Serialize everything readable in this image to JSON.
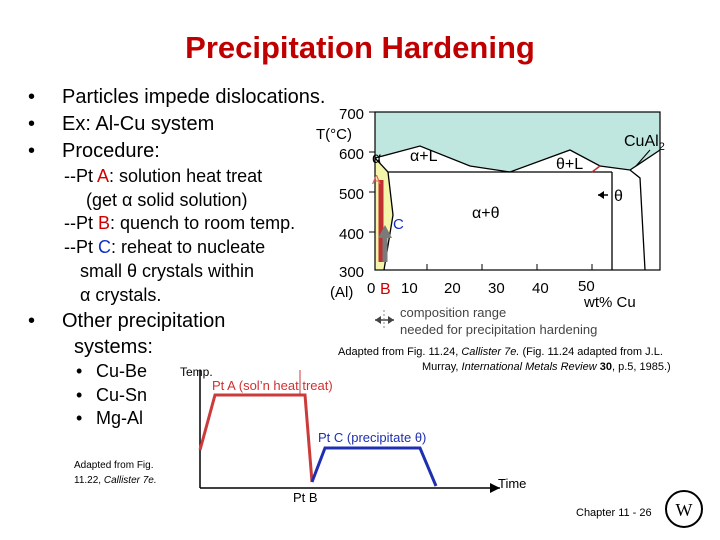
{
  "title": "Precipitation Hardening",
  "bullets": {
    "b1": "Particles impede dislocations.",
    "b2": "Ex: Al-Cu system",
    "b3": "Procedure:",
    "p1_prefix": "--Pt ",
    "p1_pt": "A",
    "p1_rest": ": solution heat treat",
    "p1_line2": "(get α solid solution)",
    "p2_prefix": "--Pt ",
    "p2_pt": "B",
    "p2_rest": ": quench to room temp.",
    "p3_prefix": "--Pt ",
    "p3_pt": "C",
    "p3_rest": ": reheat to nucleate",
    "p3_line2": "small θ crystals within",
    "p3_line3": "α crystals.",
    "b4_line1": "Other precipitation",
    "b4_line2": "systems:",
    "sys1": "Cu-Be",
    "sys2": "Cu-Sn",
    "sys3": "Mg-Al"
  },
  "phase_diagram": {
    "y_ticks": [
      "700",
      "600",
      "500",
      "400",
      "300"
    ],
    "y_title": "T(°C)",
    "x_origin": "(Al)",
    "x_ticks": [
      "0",
      "10",
      "20",
      "30",
      "40",
      "50"
    ],
    "x_title": "wt% Cu",
    "region_alpha": "α",
    "region_alpha_L": "α+L",
    "region_theta_L": "θ+L",
    "region_alpha_theta": "α+θ",
    "region_theta": "θ",
    "compound": "CuAl",
    "compound_sub": "2",
    "point_A": "A",
    "point_B": "B",
    "point_C": "C",
    "range_line1": "composition range",
    "range_line2": "needed for precipitation hardening",
    "colors": {
      "liquid": "#bfe7df",
      "alpha": "#f4f4aa",
      "arrow_red": "#c03030",
      "ramp_blue": "#1f2fb0"
    }
  },
  "credit_right": {
    "line1_pre": "Adapted from Fig. 11.24, ",
    "line1_it": "Callister 7e.",
    "line1_mid": "  (Fig. 11.24 adapted from J.L.",
    "line2_pre": "Murray, ",
    "line2_it": "International Metals Review",
    "line2_bold": "30",
    "line2_post": ", p.5, 1985.)"
  },
  "heat_plot": {
    "y_label": "Temp.",
    "x_label": "Time",
    "pt_a": "Pt A (sol’n heat treat)",
    "pt_b": "Pt B",
    "pt_c": "Pt C (precipitate θ)"
  },
  "credit_left": {
    "line1": "Adapted from Fig.",
    "line2_pre": "11.22, ",
    "line2_it": "Callister 7e."
  },
  "footer": "Chapter 11 - 26"
}
